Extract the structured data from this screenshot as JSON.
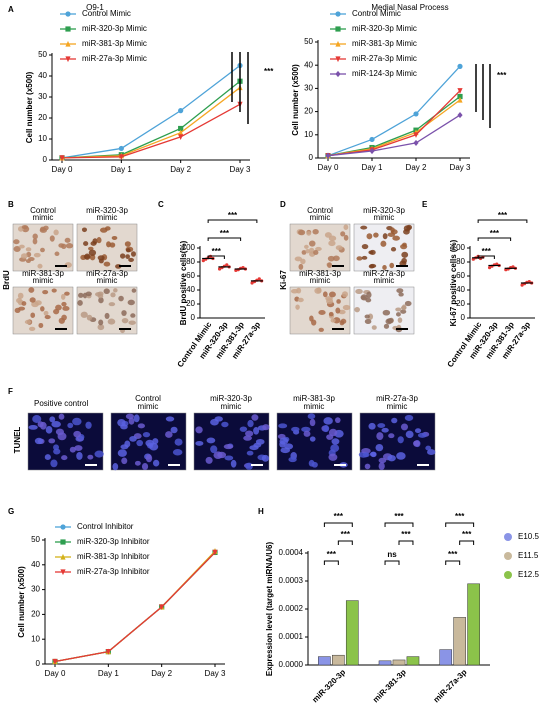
{
  "panel_labels": [
    "A",
    "B",
    "C",
    "D",
    "E",
    "F",
    "G",
    "H"
  ],
  "images": {
    "brdu": {
      "label": "BrdU",
      "captions": [
        [
          "Control",
          "mimic"
        ],
        [
          "miR-320-3p",
          "mimic"
        ],
        [
          "miR-381-3p",
          "mimic"
        ],
        [
          "miR-27a-3p",
          "mimic"
        ]
      ]
    },
    "ki67": {
      "label": "Ki-67",
      "captions": [
        [
          "Control",
          "mimic"
        ],
        [
          "miR-320-3p",
          "mimic"
        ],
        [
          "miR-381-3p",
          "mimic"
        ],
        [
          "miR-27a-3p",
          "mimic"
        ]
      ]
    },
    "tunel": {
      "label": "TUNEL",
      "captions": [
        [
          "Positive control"
        ],
        [
          "Control",
          "mimic"
        ],
        [
          "miR-320-3p",
          "mimic"
        ],
        [
          "miR-381-3p",
          "mimic"
        ],
        [
          "miR-27a-3p",
          "mimic"
        ]
      ]
    }
  },
  "chart_data": [
    {
      "type": "line",
      "title": "O9-1",
      "ylabel": "Cell number (x500)",
      "categories": [
        "Day 0",
        "Day 1",
        "Day 2",
        "Day 3"
      ],
      "ylim": [
        0,
        50
      ],
      "yticks": [
        0,
        10,
        20,
        30,
        40,
        50
      ],
      "series": [
        {
          "name": "Control Mimic",
          "color": "#4ea3d8",
          "values": [
            1,
            5.5,
            23.5,
            45
          ]
        },
        {
          "name": "miR-320-3p Mimic",
          "color": "#2e9e4f",
          "values": [
            1,
            2.5,
            15,
            37.5
          ]
        },
        {
          "name": "miR-381-3p Mimic",
          "color": "#f5a623",
          "values": [
            1,
            2,
            13,
            34.5
          ]
        },
        {
          "name": "miR-27a-3p Mimic",
          "color": "#e53935",
          "values": [
            1,
            1.5,
            11,
            26.5
          ]
        }
      ],
      "annotations": [
        "***"
      ]
    },
    {
      "type": "line",
      "title": "Medial Nasal Process",
      "ylabel": "Cell number (x500)",
      "categories": [
        "Day 0",
        "Day 1",
        "Day 2",
        "Day 3"
      ],
      "ylim": [
        0,
        50
      ],
      "yticks": [
        0,
        10,
        20,
        30,
        40,
        50
      ],
      "series": [
        {
          "name": "Control Mimic",
          "color": "#4ea3d8",
          "values": [
            1,
            8,
            19,
            39.5
          ]
        },
        {
          "name": "miR-320-3p Mimic",
          "color": "#2e9e4f",
          "values": [
            1,
            4.5,
            12,
            26.5
          ]
        },
        {
          "name": "miR-381-3p Mimic",
          "color": "#f5a623",
          "values": [
            1,
            4,
            11,
            25
          ]
        },
        {
          "name": "miR-27a-3p Mimic",
          "color": "#e53935",
          "values": [
            1,
            3.5,
            10,
            29
          ]
        },
        {
          "name": "miR-124-3p Mimic",
          "color": "#7b52ab",
          "values": [
            1,
            3,
            6.5,
            18.5
          ]
        }
      ],
      "annotations": [
        "***"
      ]
    },
    {
      "type": "dot",
      "ylabel": "BrdU positive cells(%)",
      "categories": [
        "Control Mimic",
        "miR-320-3p",
        "miR-381-3p",
        "miR-27a-3p"
      ],
      "values": [
        85,
        73,
        70,
        53
      ],
      "points": [
        [
          82,
          84,
          86,
          88,
          85
        ],
        [
          70,
          72,
          74,
          76,
          73
        ],
        [
          68,
          69,
          71,
          72,
          70
        ],
        [
          50,
          52,
          54,
          56,
          53
        ]
      ],
      "color": "#e53935",
      "ylim": [
        0,
        100
      ],
      "yticks": [
        0,
        20,
        40,
        60,
        80,
        100
      ],
      "annotations": [
        "***",
        "***",
        "***"
      ]
    },
    {
      "type": "dot",
      "ylabel": "Ki-67 positive cells (%)",
      "categories": [
        "Control Mimic",
        "miR-320-3p",
        "miR-381-3p",
        "miR-27a-3p"
      ],
      "values": [
        86,
        75,
        71,
        50
      ],
      "points": [
        [
          84,
          86,
          88,
          85,
          87
        ],
        [
          72,
          74,
          76,
          77,
          75
        ],
        [
          69,
          70,
          72,
          73,
          71
        ],
        [
          47,
          49,
          51,
          52,
          50
        ]
      ],
      "color": "#e53935",
      "ylim": [
        0,
        100
      ],
      "yticks": [
        0,
        20,
        40,
        60,
        80,
        100
      ],
      "annotations": [
        "***",
        "***",
        "***"
      ]
    },
    {
      "type": "line",
      "ylabel": "Cell number (x500)",
      "categories": [
        "Day 0",
        "Day 1",
        "Day 2",
        "Day 3"
      ],
      "ylim": [
        0,
        50
      ],
      "yticks": [
        0,
        10,
        20,
        30,
        40,
        50
      ],
      "series": [
        {
          "name": "Control Inhibitor",
          "color": "#4ea3d8",
          "values": [
            1,
            5,
            23,
            45
          ]
        },
        {
          "name": "miR-320-3p Inhibitor",
          "color": "#2e9e4f",
          "values": [
            1,
            5,
            23,
            45
          ]
        },
        {
          "name": "miR-381-3p Inhibitor",
          "color": "#d4b21a",
          "values": [
            1,
            5,
            23,
            45.5
          ]
        },
        {
          "name": "miR-27a-3p Inhibitor",
          "color": "#e53935",
          "values": [
            1,
            5,
            23,
            45
          ]
        }
      ]
    },
    {
      "type": "bar",
      "ylabel": "Expression level (target miRNA/U6)",
      "categories": [
        "miR-320-3p",
        "miR-381-3p",
        "miR-27a-3p"
      ],
      "ylim": [
        0,
        0.0004
      ],
      "yticks": [
        {
          "value": 0,
          "label": "0.0000"
        },
        0.0001,
        0.0002,
        0.0003,
        0.0004
      ],
      "series": [
        {
          "name": "E10.5",
          "color": "#8a94e6",
          "values": [
            3e-05,
            1.5e-05,
            5.5e-05
          ]
        },
        {
          "name": "E11.5",
          "color": "#c9b99c",
          "values": [
            3.5e-05,
            1.8e-05,
            0.00017
          ]
        },
        {
          "name": "E12.5",
          "color": "#8bc34a",
          "values": [
            0.00023,
            3e-05,
            0.00029
          ]
        }
      ],
      "annotations": [
        "***",
        "***",
        "***",
        "***",
        "***",
        "ns",
        "***",
        "***",
        "***"
      ]
    }
  ]
}
